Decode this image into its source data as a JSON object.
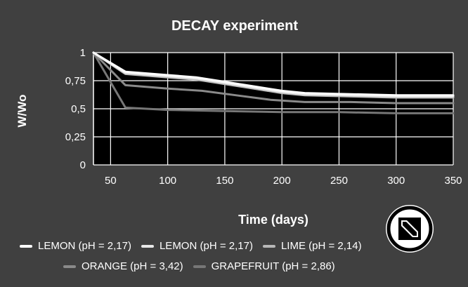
{
  "chart_data": {
    "type": "line",
    "title": "DECAY experiment",
    "xlabel": "Time (days)",
    "ylabel": "W/Wo",
    "xlim": [
      35,
      350
    ],
    "ylim": [
      0,
      1
    ],
    "xticks": [
      50,
      100,
      150,
      200,
      250,
      300,
      350
    ],
    "yticks": [
      0,
      0.25,
      0.5,
      0.75,
      1
    ],
    "ytick_labels": [
      "0",
      "0,25",
      "0,5",
      "0,75",
      "1"
    ],
    "grid": true,
    "legend_position": "bottom",
    "series": [
      {
        "name": "LEMON (pH = 2,17)",
        "color": "#ffffff",
        "x": [
          35,
          63,
          100,
          125,
          150,
          175,
          200,
          220,
          260,
          300,
          350
        ],
        "y": [
          1.0,
          0.83,
          0.8,
          0.78,
          0.74,
          0.7,
          0.66,
          0.64,
          0.63,
          0.62,
          0.62
        ]
      },
      {
        "name": "LEMON (pH = 2,17)",
        "color": "#e8e8e8",
        "x": [
          35,
          63,
          100,
          125,
          150,
          175,
          200,
          220,
          260,
          300,
          350
        ],
        "y": [
          1.0,
          0.82,
          0.79,
          0.77,
          0.73,
          0.69,
          0.65,
          0.63,
          0.62,
          0.61,
          0.61
        ]
      },
      {
        "name": "LIME (pH = 2,14)",
        "color": "#b8b8b8",
        "x": [
          35,
          63,
          100,
          125,
          150,
          175,
          200,
          220,
          260,
          300,
          350
        ],
        "y": [
          1.0,
          0.81,
          0.78,
          0.76,
          0.72,
          0.68,
          0.64,
          0.62,
          0.61,
          0.6,
          0.6
        ]
      },
      {
        "name": "ORANGE (pH = 3,42)",
        "color": "#8a8a8a",
        "x": [
          35,
          63,
          100,
          130,
          160,
          190,
          220,
          260,
          300,
          350
        ],
        "y": [
          1.0,
          0.71,
          0.68,
          0.66,
          0.62,
          0.58,
          0.56,
          0.56,
          0.55,
          0.55
        ]
      },
      {
        "name": "GRAPEFRUIT (pH = 2,86)",
        "color": "#777777",
        "x": [
          35,
          63,
          100,
          150,
          200,
          250,
          300,
          350
        ],
        "y": [
          1.0,
          0.51,
          0.49,
          0.48,
          0.47,
          0.47,
          0.46,
          0.46
        ]
      }
    ]
  },
  "legend": {
    "items": [
      {
        "label": "LEMON (pH = 2,17)",
        "color": "#ffffff"
      },
      {
        "label": "LEMON (pH = 2,17)",
        "color": "#e8e8e8"
      },
      {
        "label": "LIME (pH = 2,14)",
        "color": "#b8b8b8"
      },
      {
        "label": "ORANGE (pH = 3,42)",
        "color": "#8a8a8a"
      },
      {
        "label": "GRAPEFRUIT (pH = 2,86)",
        "color": "#777777"
      }
    ]
  },
  "overlay": {
    "icon": "edit-icon"
  }
}
